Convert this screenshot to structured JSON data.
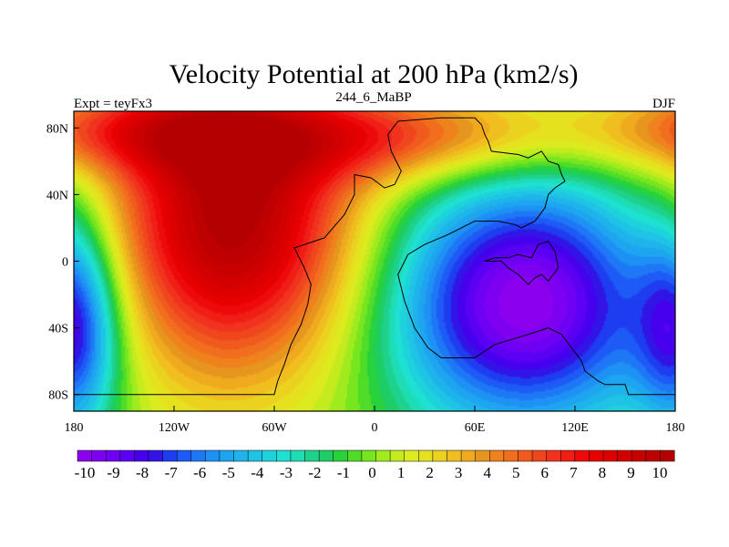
{
  "title": "Velocity Potential at 200 hPa (km2/s)",
  "subtitle_left": "Expt = teyFx3",
  "subtitle_center": "244_6_MaBP",
  "subtitle_right": "DJF",
  "chart_data": {
    "type": "heatmap",
    "title": "Velocity Potential at 200 hPa (km2/s)",
    "units": "km2/s",
    "xlim": [
      -180,
      180
    ],
    "ylim": [
      -90,
      90
    ],
    "x_ticks": [
      {
        "value": -180,
        "label": "180"
      },
      {
        "value": -120,
        "label": "120W"
      },
      {
        "value": -60,
        "label": "60W"
      },
      {
        "value": 0,
        "label": "0"
      },
      {
        "value": 60,
        "label": "60E"
      },
      {
        "value": 120,
        "label": "120E"
      },
      {
        "value": 180,
        "label": "180"
      }
    ],
    "y_ticks": [
      {
        "value": 80,
        "label": "80N"
      },
      {
        "value": 40,
        "label": "40N"
      },
      {
        "value": 0,
        "label": "0"
      },
      {
        "value": -40,
        "label": "40S"
      },
      {
        "value": -80,
        "label": "80S"
      }
    ],
    "colorbar": {
      "min": -10.5,
      "max": 10.5,
      "step": 0.5,
      "labels": [
        "-10",
        "-9",
        "-8",
        "-7",
        "-6",
        "-5",
        "-4",
        "-3",
        "-2",
        "-1",
        "0",
        "1",
        "2",
        "3",
        "4",
        "5",
        "6",
        "7",
        "8",
        "9",
        "10"
      ],
      "colors": [
        "#8c00f0",
        "#7d00f2",
        "#6e00f4",
        "#5b00f2",
        "#4600ee",
        "#3214e6",
        "#1e3cf0",
        "#1e5af5",
        "#1e78f5",
        "#1e91f5",
        "#1ea5f0",
        "#1eb4eb",
        "#1ec3e6",
        "#1ed2dc",
        "#1ee1d2",
        "#1edcb4",
        "#1ed28c",
        "#1ecd64",
        "#28d23c",
        "#50dc28",
        "#78e61e",
        "#a0eb1e",
        "#c3eb1e",
        "#dceb1e",
        "#e6e11e",
        "#ebd21e",
        "#f0be1e",
        "#f0aa1e",
        "#e6961e",
        "#f0821e",
        "#f06e1e",
        "#f05a1e",
        "#f0461e",
        "#f0321e",
        "#f01e14",
        "#ee0a0a",
        "#e60000",
        "#dc0000",
        "#d20000",
        "#c80000",
        "#be0000",
        "#b40000"
      ]
    },
    "centers": [
      {
        "lon": -85,
        "lat": 25,
        "amp": 10.5,
        "sx": 55,
        "sy": 65
      },
      {
        "lon": 20,
        "lat": 75,
        "amp": 5.5,
        "sx": 70,
        "sy": 20
      },
      {
        "lon": -150,
        "lat": 78,
        "amp": 4.5,
        "sx": 60,
        "sy": 18
      },
      {
        "lon": 90,
        "lat": -25,
        "amp": -10.5,
        "sx": 60,
        "sy": 55
      },
      {
        "lon": -178,
        "lat": -40,
        "amp": -6.5,
        "sx": 18,
        "sy": 45
      }
    ],
    "base_value": 0
  },
  "map": {
    "projection": "cylindrical-equidistant",
    "coastline": "paleo-continent outline"
  }
}
